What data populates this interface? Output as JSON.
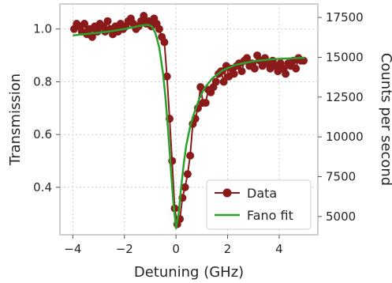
{
  "chart_data": {
    "type": "scatter",
    "xlabel": "Detuning (GHz)",
    "ylabel": "Transmission",
    "ylabel_right": "Counts per second",
    "xlim": [
      -4.5,
      5.5
    ],
    "ylim": [
      0.22,
      1.095
    ],
    "ylim_right": [
      3850,
      18350
    ],
    "x_ticks": [
      -4,
      -2,
      0,
      2,
      4
    ],
    "x_tick_labels": [
      "−4",
      "−2",
      "0",
      "2",
      "4"
    ],
    "y_ticks": [
      0.4,
      0.6,
      0.8,
      1.0
    ],
    "y_tick_labels": [
      "0.4",
      "0.6",
      "0.8",
      "1.0"
    ],
    "y_right_ticks": [
      5000,
      7500,
      10000,
      12500,
      15000,
      17500
    ],
    "y_right_tick_labels": [
      "5000",
      "7500",
      "10000",
      "12500",
      "15000",
      "17500"
    ],
    "grid": true,
    "legend_position": "bottom-right",
    "colors": {
      "data": "#8b1a1a",
      "fit": "#2ca02c",
      "text": "#262626"
    },
    "series": [
      {
        "name": "Data",
        "marker": "circle-line",
        "x": [
          -3.95,
          -3.85,
          -3.75,
          -3.65,
          -3.55,
          -3.45,
          -3.35,
          -3.25,
          -3.15,
          -3.05,
          -2.95,
          -2.85,
          -2.75,
          -2.65,
          -2.55,
          -2.45,
          -2.35,
          -2.25,
          -2.15,
          -2.05,
          -1.95,
          -1.85,
          -1.75,
          -1.65,
          -1.55,
          -1.45,
          -1.35,
          -1.25,
          -1.15,
          -1.05,
          -0.95,
          -0.85,
          -0.75,
          -0.65,
          -0.55,
          -0.45,
          -0.35,
          -0.25,
          -0.15,
          -0.05,
          0.05,
          0.15,
          0.25,
          0.35,
          0.45,
          0.55,
          0.65,
          0.75,
          0.85,
          0.95,
          1.05,
          1.15,
          1.25,
          1.35,
          1.45,
          1.55,
          1.65,
          1.75,
          1.85,
          1.95,
          2.05,
          2.15,
          2.25,
          2.35,
          2.45,
          2.55,
          2.65,
          2.75,
          2.85,
          2.95,
          3.05,
          3.15,
          3.25,
          3.35,
          3.45,
          3.55,
          3.65,
          3.75,
          3.85,
          3.95,
          4.05,
          4.15,
          4.25,
          4.35,
          4.45,
          4.55,
          4.65,
          4.75,
          4.85,
          4.95
        ],
        "y": [
          1.0,
          1.02,
          1.01,
          0.99,
          1.02,
          0.98,
          1.0,
          0.97,
          1.01,
          0.99,
          1.02,
          1.01,
          0.99,
          1.03,
          1.0,
          0.98,
          1.01,
          0.99,
          1.02,
          1.0,
          1.01,
          1.03,
          1.04,
          1.02,
          1.0,
          1.01,
          1.03,
          1.05,
          1.02,
          1.03,
          1.01,
          1.04,
          1.02,
          1.0,
          0.97,
          0.95,
          0.82,
          0.66,
          0.5,
          0.32,
          0.26,
          0.28,
          0.36,
          0.4,
          0.45,
          0.52,
          0.64,
          0.66,
          0.7,
          0.78,
          0.72,
          0.72,
          0.77,
          0.76,
          0.78,
          0.8,
          0.83,
          0.84,
          0.8,
          0.86,
          0.82,
          0.85,
          0.83,
          0.86,
          0.87,
          0.84,
          0.88,
          0.89,
          0.86,
          0.87,
          0.85,
          0.9,
          0.88,
          0.86,
          0.89,
          0.87,
          0.85,
          0.88,
          0.86,
          0.84,
          0.87,
          0.85,
          0.83,
          0.87,
          0.86,
          0.88,
          0.85,
          0.89,
          0.88,
          0.88
        ]
      },
      {
        "name": "Fano fit",
        "marker": "line",
        "x": [
          -4.0,
          -3.5,
          -3.0,
          -2.5,
          -2.0,
          -1.6,
          -1.3,
          -1.1,
          -0.95,
          -0.8,
          -0.65,
          -0.5,
          -0.4,
          -0.3,
          -0.2,
          -0.1,
          0.0,
          0.1,
          0.2,
          0.3,
          0.4,
          0.55,
          0.7,
          0.9,
          1.1,
          1.4,
          1.8,
          2.3,
          3.0,
          3.8,
          4.5,
          5.0
        ],
        "y": [
          0.976,
          0.981,
          0.986,
          0.992,
          1.0,
          1.008,
          1.014,
          1.016,
          1.011,
          0.985,
          0.93,
          0.83,
          0.73,
          0.61,
          0.47,
          0.34,
          0.245,
          0.3,
          0.4,
          0.49,
          0.56,
          0.63,
          0.68,
          0.735,
          0.775,
          0.812,
          0.843,
          0.864,
          0.878,
          0.886,
          0.889,
          0.891
        ]
      }
    ]
  }
}
